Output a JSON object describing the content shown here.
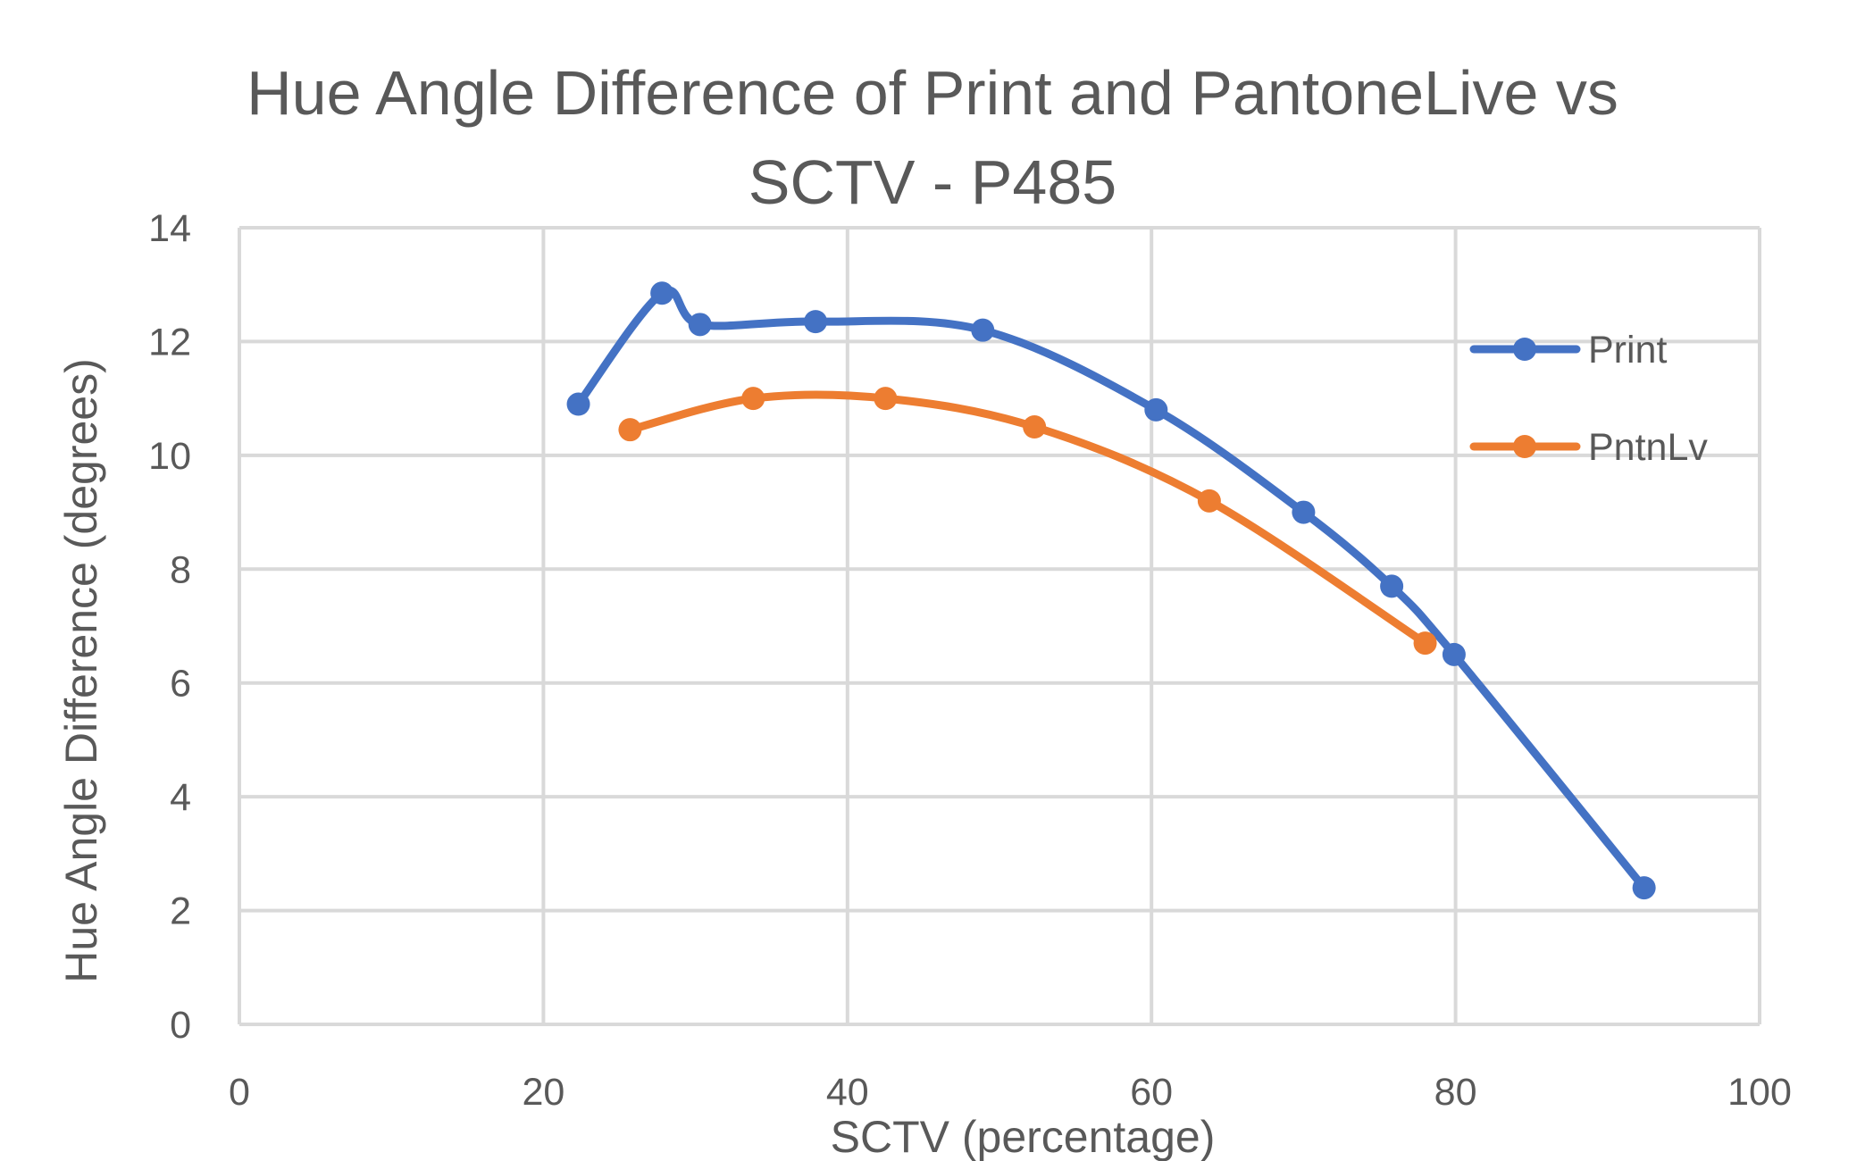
{
  "chart_data": {
    "type": "scatter",
    "title_lines": [
      "Hue Angle Difference of Print and PantoneLive vs",
      "SCTV - P485"
    ],
    "xlabel": "SCTV (percentage)",
    "ylabel": "Hue Angle Difference (degrees)",
    "xlim": [
      0,
      100
    ],
    "ylim": [
      0,
      14
    ],
    "x_ticks": [
      "0",
      "20",
      "40",
      "60",
      "80",
      "100"
    ],
    "y_ticks": [
      "0",
      "2",
      "4",
      "6",
      "8",
      "10",
      "12",
      "14"
    ],
    "grid": true,
    "smooth_lines": true,
    "legend_position": "right",
    "series": [
      {
        "name": "Print",
        "color": "#4472C4",
        "points": [
          {
            "x": 22.3,
            "y": 10.9
          },
          {
            "x": 27.8,
            "y": 12.85
          },
          {
            "x": 30.3,
            "y": 12.3
          },
          {
            "x": 37.9,
            "y": 12.35
          },
          {
            "x": 48.9,
            "y": 12.2
          },
          {
            "x": 60.3,
            "y": 10.8
          },
          {
            "x": 70.0,
            "y": 9.0
          },
          {
            "x": 75.8,
            "y": 7.7
          },
          {
            "x": 79.9,
            "y": 6.5
          },
          {
            "x": 92.4,
            "y": 2.4
          }
        ]
      },
      {
        "name": "PntnLv",
        "color": "#ED7D31",
        "points": [
          {
            "x": 25.7,
            "y": 10.45
          },
          {
            "x": 33.8,
            "y": 11.0
          },
          {
            "x": 42.5,
            "y": 11.0
          },
          {
            "x": 52.3,
            "y": 10.5
          },
          {
            "x": 63.8,
            "y": 9.2
          },
          {
            "x": 78.0,
            "y": 6.7
          }
        ]
      }
    ]
  }
}
